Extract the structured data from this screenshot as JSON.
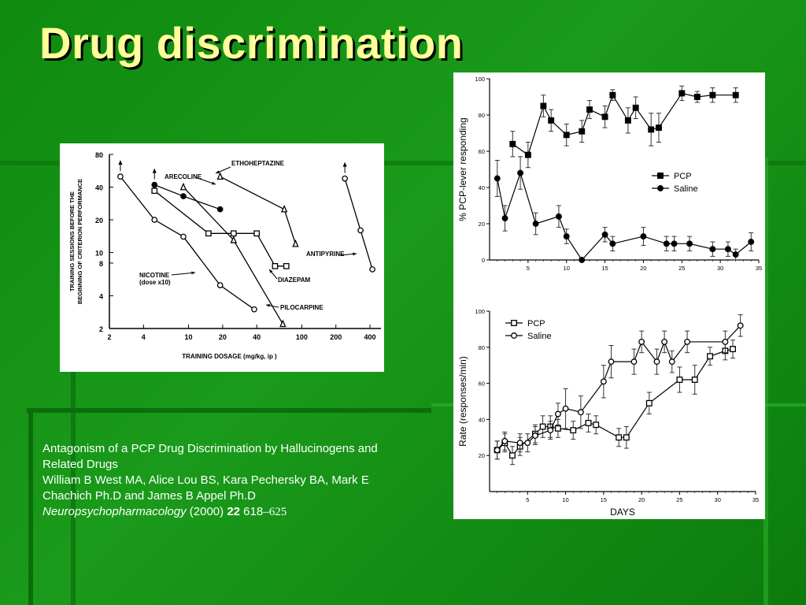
{
  "slide": {
    "title": "Drug discrimination",
    "caption": {
      "line1": "Antagonism of a PCP Drug Discrimination by Hallucinogens and",
      "line2": "Related Drugs",
      "line3": "William B West MA, Alice Lou BS, Kara Pechersky BA, Mark E",
      "line4": "Chachich Ph.D and James B Appel Ph.D",
      "journal": "Neuropsychopharmacology",
      "year": " (2000) ",
      "volume": "22",
      "pages_start": " 618",
      "pages_end": "–625"
    },
    "colors": {
      "title": "#ffff99",
      "background": "#129212",
      "caption": "#ffffff"
    }
  },
  "chart_data": [
    {
      "type": "line",
      "xlabel": "TRAINING DOSAGE (mg/kg, ip )",
      "ylabel": "TRAINING SESSIONS BEFORE THE BEGINNING OF CRITERION PERFORMANCE",
      "xscale": "log",
      "yscale": "log",
      "xlim": [
        2,
        500
      ],
      "ylim": [
        2,
        80
      ],
      "xticks": [
        2,
        4,
        10,
        20,
        40,
        100,
        200,
        400
      ],
      "yticks": [
        2,
        4,
        8,
        10,
        20,
        40,
        80
      ],
      "series": [
        {
          "name": "NICOTINE (dose x10)",
          "marker": "open-circle",
          "x": [
            2.5,
            5,
            9,
            19,
            38
          ],
          "y": [
            50,
            20,
            14,
            5,
            3
          ]
        },
        {
          "name": "ARECOLINE",
          "marker": "filled-circle",
          "x": [
            5,
            9,
            19
          ],
          "y": [
            42,
            33,
            25
          ]
        },
        {
          "name": "ETHOHEPTAZINE",
          "marker": "open-triangle",
          "x": [
            19,
            70,
            88
          ],
          "y": [
            50,
            25,
            12
          ]
        },
        {
          "name": "DIAZEPAM",
          "marker": "open-square",
          "x": [
            5,
            15,
            25,
            40,
            58,
            73
          ],
          "y": [
            37,
            15,
            15,
            15,
            7.5,
            7.5
          ]
        },
        {
          "name": "PILOCARPINE",
          "marker": "open-triangle",
          "x": [
            9,
            25,
            68
          ],
          "y": [
            40,
            13,
            2.2
          ]
        },
        {
          "name": "ANTIPYRINE",
          "marker": "open-circle",
          "x": [
            240,
            330,
            420
          ],
          "y": [
            48,
            16,
            7
          ]
        }
      ],
      "arrow_labels": {
        "nicotine": "NICOTINE",
        "nicotine_sub": "(dose x10)",
        "arecoline": "ARECOLINE",
        "ethoheptazine": "ETHOHEPTAZINE",
        "diazepam": "DIAZEPAM",
        "pilocarpine": "PILOCARPINE",
        "antipyrine": "ANTIPYRINE"
      }
    },
    {
      "type": "line",
      "ylabel": "% PCP-lever responding",
      "xlim": [
        0,
        35
      ],
      "ylim": [
        0,
        100
      ],
      "xticks": [
        5,
        10,
        15,
        20,
        25,
        30,
        35
      ],
      "yticks": [
        0,
        20,
        40,
        60,
        80,
        100
      ],
      "legend": "right",
      "series": [
        {
          "name": "PCP",
          "marker": "filled-square",
          "x": [
            3,
            5,
            7,
            8,
            10,
            12,
            13,
            15,
            16,
            18,
            19,
            21,
            22,
            25,
            27,
            29,
            32
          ],
          "y": [
            64,
            58,
            85,
            77,
            69,
            71,
            83,
            79,
            91,
            77,
            84,
            72,
            73,
            92,
            90,
            91,
            91
          ],
          "err": [
            7,
            7,
            6,
            6,
            6,
            6,
            5,
            6,
            3,
            7,
            6,
            9,
            8,
            4,
            3,
            4,
            4
          ]
        },
        {
          "name": "Saline",
          "marker": "filled-circle",
          "x": [
            1,
            2,
            4,
            6,
            9,
            10,
            12,
            15,
            16,
            20,
            23,
            24,
            26,
            29,
            31,
            32,
            34
          ],
          "y": [
            45,
            23,
            48,
            20,
            24,
            13,
            0,
            14,
            9,
            13,
            9,
            9,
            9,
            6,
            6,
            3,
            10
          ],
          "err": [
            10,
            7,
            9,
            6,
            6,
            4,
            1,
            4,
            4,
            5,
            4,
            4,
            4,
            4,
            4,
            3,
            5
          ]
        }
      ]
    },
    {
      "type": "line",
      "xlabel": "DAYS",
      "ylabel": "Rate (responses/min)",
      "xlim": [
        0,
        35
      ],
      "ylim": [
        0,
        100
      ],
      "xticks": [
        5,
        10,
        15,
        20,
        25,
        30,
        35
      ],
      "yticks": [
        20,
        40,
        60,
        80,
        100
      ],
      "legend": "top-left",
      "series": [
        {
          "name": "PCP",
          "marker": "open-square",
          "x": [
            1,
            2,
            3,
            4,
            6,
            7,
            8,
            9,
            11,
            13,
            14,
            17,
            18,
            21,
            25,
            27,
            29,
            31,
            32
          ],
          "y": [
            23,
            27,
            20,
            25,
            32,
            36,
            36,
            35,
            34,
            38,
            37,
            30,
            30,
            49,
            62,
            62,
            75,
            78,
            79
          ],
          "err": [
            5,
            5,
            5,
            5,
            5,
            6,
            6,
            5,
            5,
            5,
            5,
            5,
            6,
            6,
            7,
            8,
            5,
            5,
            5
          ]
        },
        {
          "name": "Saline",
          "marker": "open-circle",
          "x": [
            1,
            2,
            4,
            5,
            6,
            8,
            9,
            10,
            12,
            15,
            16,
            19,
            20,
            22,
            23,
            24,
            26,
            31,
            33
          ],
          "y": [
            23,
            28,
            27,
            27,
            31,
            34,
            43,
            46,
            44,
            61,
            72,
            72,
            83,
            72,
            83,
            72,
            83,
            83,
            92
          ],
          "err": [
            5,
            5,
            5,
            5,
            5,
            5,
            6,
            11,
            9,
            9,
            9,
            7,
            6,
            7,
            6,
            6,
            6,
            6,
            6
          ]
        }
      ]
    }
  ]
}
